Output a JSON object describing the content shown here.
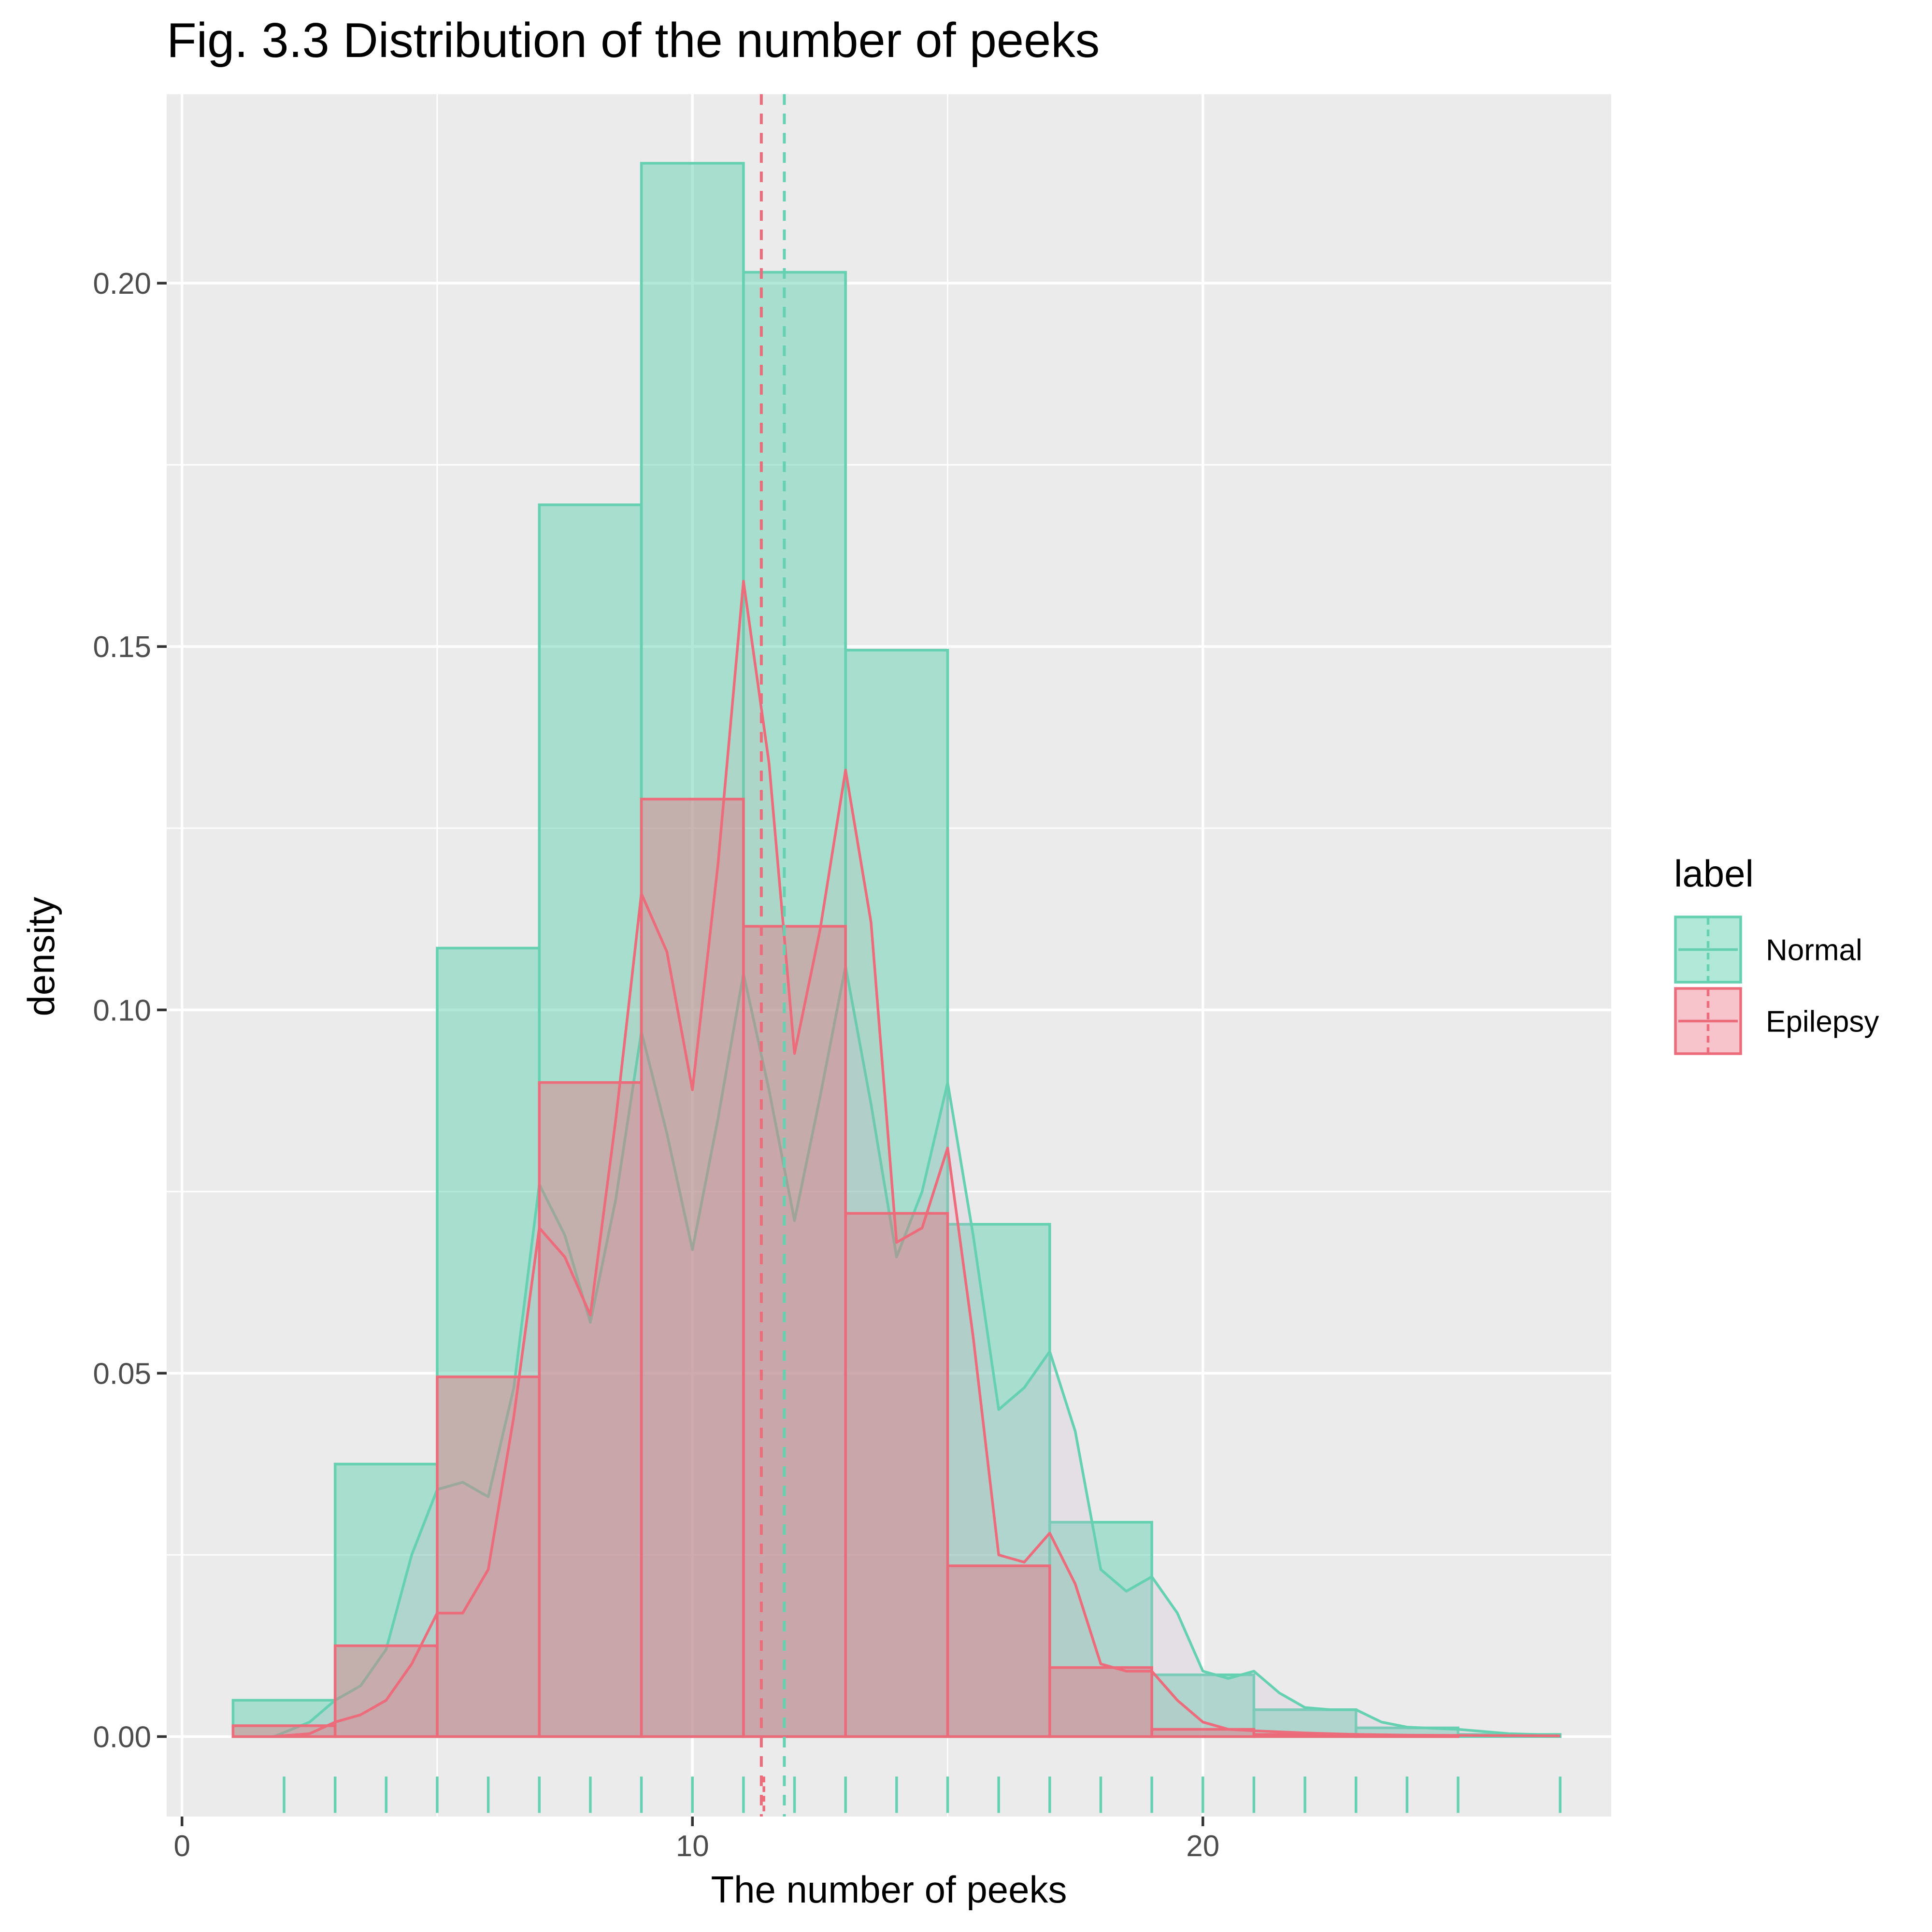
{
  "chart_data": {
    "type": "histogram",
    "title": "Fig. 3.3 Distribution of the number of peeks",
    "xlabel": "The number of peeks",
    "ylabel": "density",
    "xlim": [
      -0.3,
      28.0
    ],
    "ylim": [
      -0.011,
      0.226
    ],
    "x_ticks": [
      0,
      10,
      20
    ],
    "x_tick_labels": [
      "0",
      "10",
      "20"
    ],
    "y_ticks": [
      0.0,
      0.05,
      0.1,
      0.15,
      0.2
    ],
    "y_tick_labels": [
      "0.00",
      "0.05",
      "0.10",
      "0.15",
      "0.20"
    ],
    "grid": true,
    "legend": {
      "title": "label",
      "position": "right",
      "entries": [
        "Normal",
        "Epilepsy"
      ]
    },
    "bin_edges": [
      1,
      3,
      5,
      7,
      9,
      11,
      13,
      15,
      17,
      19,
      21,
      23,
      25,
      27
    ],
    "series": [
      {
        "name": "Normal",
        "color": "#66d1b1",
        "fill": "rgba(102,209,177,0.5)",
        "density": [
          0.005,
          0.0375,
          0.1085,
          0.1695,
          0.2165,
          0.2015,
          0.1495,
          0.0705,
          0.0295,
          0.0085,
          0.0037,
          0.0012,
          0.0003
        ],
        "mean": 11.8,
        "kde": [
          [
            1.8,
            0.0
          ],
          [
            2.5,
            0.002
          ],
          [
            3.0,
            0.005
          ],
          [
            3.5,
            0.007
          ],
          [
            4.0,
            0.012
          ],
          [
            4.5,
            0.025
          ],
          [
            5.0,
            0.034
          ],
          [
            5.5,
            0.035
          ],
          [
            6.0,
            0.033
          ],
          [
            6.5,
            0.048
          ],
          [
            7.0,
            0.076
          ],
          [
            7.5,
            0.069
          ],
          [
            8.0,
            0.057
          ],
          [
            8.5,
            0.074
          ],
          [
            9.0,
            0.097
          ],
          [
            9.5,
            0.083
          ],
          [
            10.0,
            0.067
          ],
          [
            10.5,
            0.085
          ],
          [
            11.0,
            0.105
          ],
          [
            11.5,
            0.089
          ],
          [
            12.0,
            0.071
          ],
          [
            12.5,
            0.088
          ],
          [
            13.0,
            0.106
          ],
          [
            13.5,
            0.087
          ],
          [
            14.0,
            0.066
          ],
          [
            14.5,
            0.075
          ],
          [
            15.0,
            0.09
          ],
          [
            15.5,
            0.069
          ],
          [
            16.0,
            0.045
          ],
          [
            16.5,
            0.048
          ],
          [
            17.0,
            0.053
          ],
          [
            17.5,
            0.042
          ],
          [
            18.0,
            0.023
          ],
          [
            18.5,
            0.02
          ],
          [
            19.0,
            0.022
          ],
          [
            19.5,
            0.017
          ],
          [
            20.0,
            0.009
          ],
          [
            20.5,
            0.008
          ],
          [
            21.0,
            0.009
          ],
          [
            21.5,
            0.006
          ],
          [
            22.0,
            0.004
          ],
          [
            22.5,
            0.0037
          ],
          [
            23.0,
            0.0037
          ],
          [
            23.5,
            0.002
          ],
          [
            24.0,
            0.0013
          ],
          [
            25.0,
            0.001
          ],
          [
            26.0,
            0.0004
          ],
          [
            27.0,
            0.0002
          ]
        ],
        "rug": [
          2,
          3,
          4,
          5,
          6,
          7,
          8,
          9,
          10,
          11,
          12,
          13,
          14,
          15,
          16,
          17,
          18,
          19,
          20,
          21,
          22,
          23,
          24,
          25,
          27
        ]
      },
      {
        "name": "Epilepsy",
        "color": "#ec6c7c",
        "fill": "rgba(236,108,124,0.4)",
        "density": [
          0.0015,
          0.0125,
          0.0495,
          0.09,
          0.129,
          0.1115,
          0.072,
          0.0235,
          0.0095,
          0.001,
          0.0003,
          0.0001,
          0.0
        ],
        "mean": 11.35,
        "kde": [
          [
            1.8,
            0.0
          ],
          [
            2.5,
            0.0004
          ],
          [
            3.0,
            0.002
          ],
          [
            3.5,
            0.003
          ],
          [
            4.0,
            0.005
          ],
          [
            4.5,
            0.01
          ],
          [
            5.0,
            0.017
          ],
          [
            5.5,
            0.017
          ],
          [
            6.0,
            0.023
          ],
          [
            6.5,
            0.044
          ],
          [
            7.0,
            0.07
          ],
          [
            7.5,
            0.066
          ],
          [
            8.0,
            0.058
          ],
          [
            8.5,
            0.085
          ],
          [
            9.0,
            0.116
          ],
          [
            9.5,
            0.108
          ],
          [
            10.0,
            0.089
          ],
          [
            10.5,
            0.12
          ],
          [
            11.0,
            0.159
          ],
          [
            11.5,
            0.134
          ],
          [
            12.0,
            0.094
          ],
          [
            12.5,
            0.111
          ],
          [
            13.0,
            0.133
          ],
          [
            13.5,
            0.112
          ],
          [
            14.0,
            0.068
          ],
          [
            14.5,
            0.07
          ],
          [
            15.0,
            0.081
          ],
          [
            15.5,
            0.055
          ],
          [
            16.0,
            0.025
          ],
          [
            16.5,
            0.024
          ],
          [
            17.0,
            0.028
          ],
          [
            17.5,
            0.021
          ],
          [
            18.0,
            0.01
          ],
          [
            18.5,
            0.009
          ],
          [
            19.0,
            0.009
          ],
          [
            19.5,
            0.005
          ],
          [
            20.0,
            0.002
          ],
          [
            20.5,
            0.001
          ],
          [
            21.0,
            0.0008
          ],
          [
            22.0,
            0.0005
          ],
          [
            23.0,
            0.0003
          ],
          [
            24.0,
            0.0002
          ],
          [
            27.0,
            0.0001
          ]
        ]
      }
    ]
  }
}
